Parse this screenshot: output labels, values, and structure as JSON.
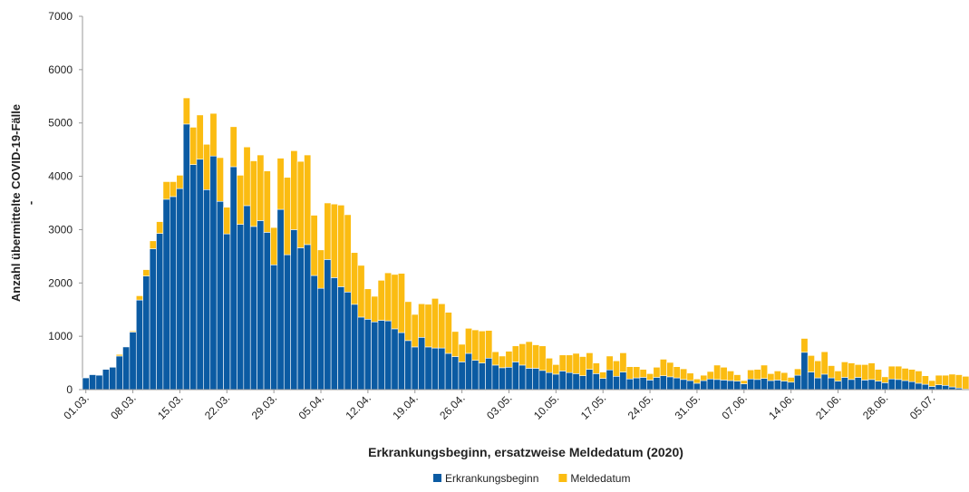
{
  "chart_data": {
    "type": "stacked_bar",
    "y_label": "Anzahl übermittelte COVID-19-Fälle",
    "y_label_2": "-",
    "x_label": "Erkrankungsbeginn, ersatzweise Meldedatum (2020)",
    "categories": [
      "01.03.",
      null,
      null,
      null,
      null,
      null,
      null,
      "08.03.",
      null,
      null,
      null,
      null,
      null,
      null,
      "15.03.",
      null,
      null,
      null,
      null,
      null,
      null,
      "22.03.",
      null,
      null,
      null,
      null,
      null,
      null,
      "29.03.",
      null,
      null,
      null,
      null,
      null,
      null,
      "05.04.",
      null,
      null,
      null,
      null,
      null,
      null,
      "12.04.",
      null,
      null,
      null,
      null,
      null,
      null,
      "19.04.",
      null,
      null,
      null,
      null,
      null,
      null,
      "26.04.",
      null,
      null,
      null,
      null,
      null,
      null,
      "03.05.",
      null,
      null,
      null,
      null,
      null,
      null,
      "10.05.",
      null,
      null,
      null,
      null,
      null,
      null,
      "17.05.",
      null,
      null,
      null,
      null,
      null,
      null,
      "24.05.",
      null,
      null,
      null,
      null,
      null,
      null,
      "31.05.",
      null,
      null,
      null,
      null,
      null,
      null,
      "07.06.",
      null,
      null,
      null,
      null,
      null,
      null,
      "14.06.",
      null,
      null,
      null,
      null,
      null,
      null,
      "21.06.",
      null,
      null,
      null,
      null,
      null,
      null,
      "28.06.",
      null,
      null,
      null,
      null,
      null,
      null,
      "05.07.",
      null,
      null,
      null,
      null,
      null
    ],
    "series": [
      {
        "name": "Erkrankungsbeginn",
        "color": "#0b5ba3",
        "values": [
          220,
          280,
          270,
          380,
          420,
          630,
          800,
          1080,
          1680,
          2130,
          2640,
          2930,
          3570,
          3620,
          3770,
          4980,
          4220,
          4320,
          3750,
          4380,
          3530,
          2920,
          4180,
          3100,
          3450,
          3060,
          3170,
          2950,
          2340,
          3380,
          2530,
          3000,
          2660,
          2720,
          2140,
          1900,
          2440,
          2100,
          1930,
          1830,
          1600,
          1360,
          1320,
          1270,
          1300,
          1290,
          1140,
          1070,
          920,
          800,
          980,
          800,
          780,
          780,
          680,
          620,
          520,
          680,
          550,
          500,
          590,
          460,
          410,
          420,
          520,
          460,
          400,
          400,
          360,
          320,
          290,
          350,
          320,
          300,
          260,
          380,
          300,
          210,
          370,
          250,
          330,
          200,
          220,
          230,
          180,
          230,
          260,
          240,
          220,
          190,
          170,
          120,
          170,
          200,
          190,
          180,
          170,
          160,
          110,
          200,
          190,
          210,
          170,
          180,
          160,
          140,
          270,
          700,
          330,
          220,
          290,
          220,
          160,
          230,
          190,
          230,
          180,
          190,
          160,
          130,
          200,
          190,
          170,
          150,
          120,
          100,
          60,
          90,
          80,
          50,
          30,
          10
        ]
      },
      {
        "name": "Meldedatum",
        "color": "#fbbc12",
        "values": [
          0,
          0,
          0,
          0,
          0,
          30,
          0,
          20,
          80,
          120,
          150,
          220,
          330,
          280,
          250,
          490,
          700,
          830,
          850,
          800,
          820,
          500,
          750,
          920,
          1100,
          1230,
          1230,
          1150,
          700,
          960,
          1450,
          1480,
          1620,
          1680,
          1130,
          720,
          1060,
          1380,
          1530,
          1450,
          970,
          970,
          570,
          480,
          750,
          900,
          1020,
          1110,
          730,
          610,
          630,
          800,
          930,
          830,
          770,
          470,
          330,
          470,
          570,
          600,
          520,
          250,
          220,
          300,
          300,
          400,
          500,
          440,
          460,
          270,
          180,
          300,
          330,
          380,
          360,
          310,
          200,
          120,
          260,
          290,
          360,
          230,
          210,
          150,
          120,
          190,
          310,
          270,
          210,
          200,
          140,
          80,
          100,
          140,
          270,
          240,
          180,
          120,
          60,
          170,
          190,
          250,
          130,
          170,
          160,
          90,
          120,
          260,
          310,
          320,
          420,
          230,
          190,
          290,
          310,
          240,
          290,
          310,
          220,
          110,
          240,
          250,
          230,
          230,
          230,
          160,
          110,
          180,
          190,
          240,
          250,
          240
        ]
      }
    ],
    "ylim": [
      0,
      7000
    ],
    "yticks": [
      0,
      1000,
      2000,
      3000,
      4000,
      5000,
      6000,
      7000
    ],
    "grid": false,
    "legend": "bottom"
  }
}
